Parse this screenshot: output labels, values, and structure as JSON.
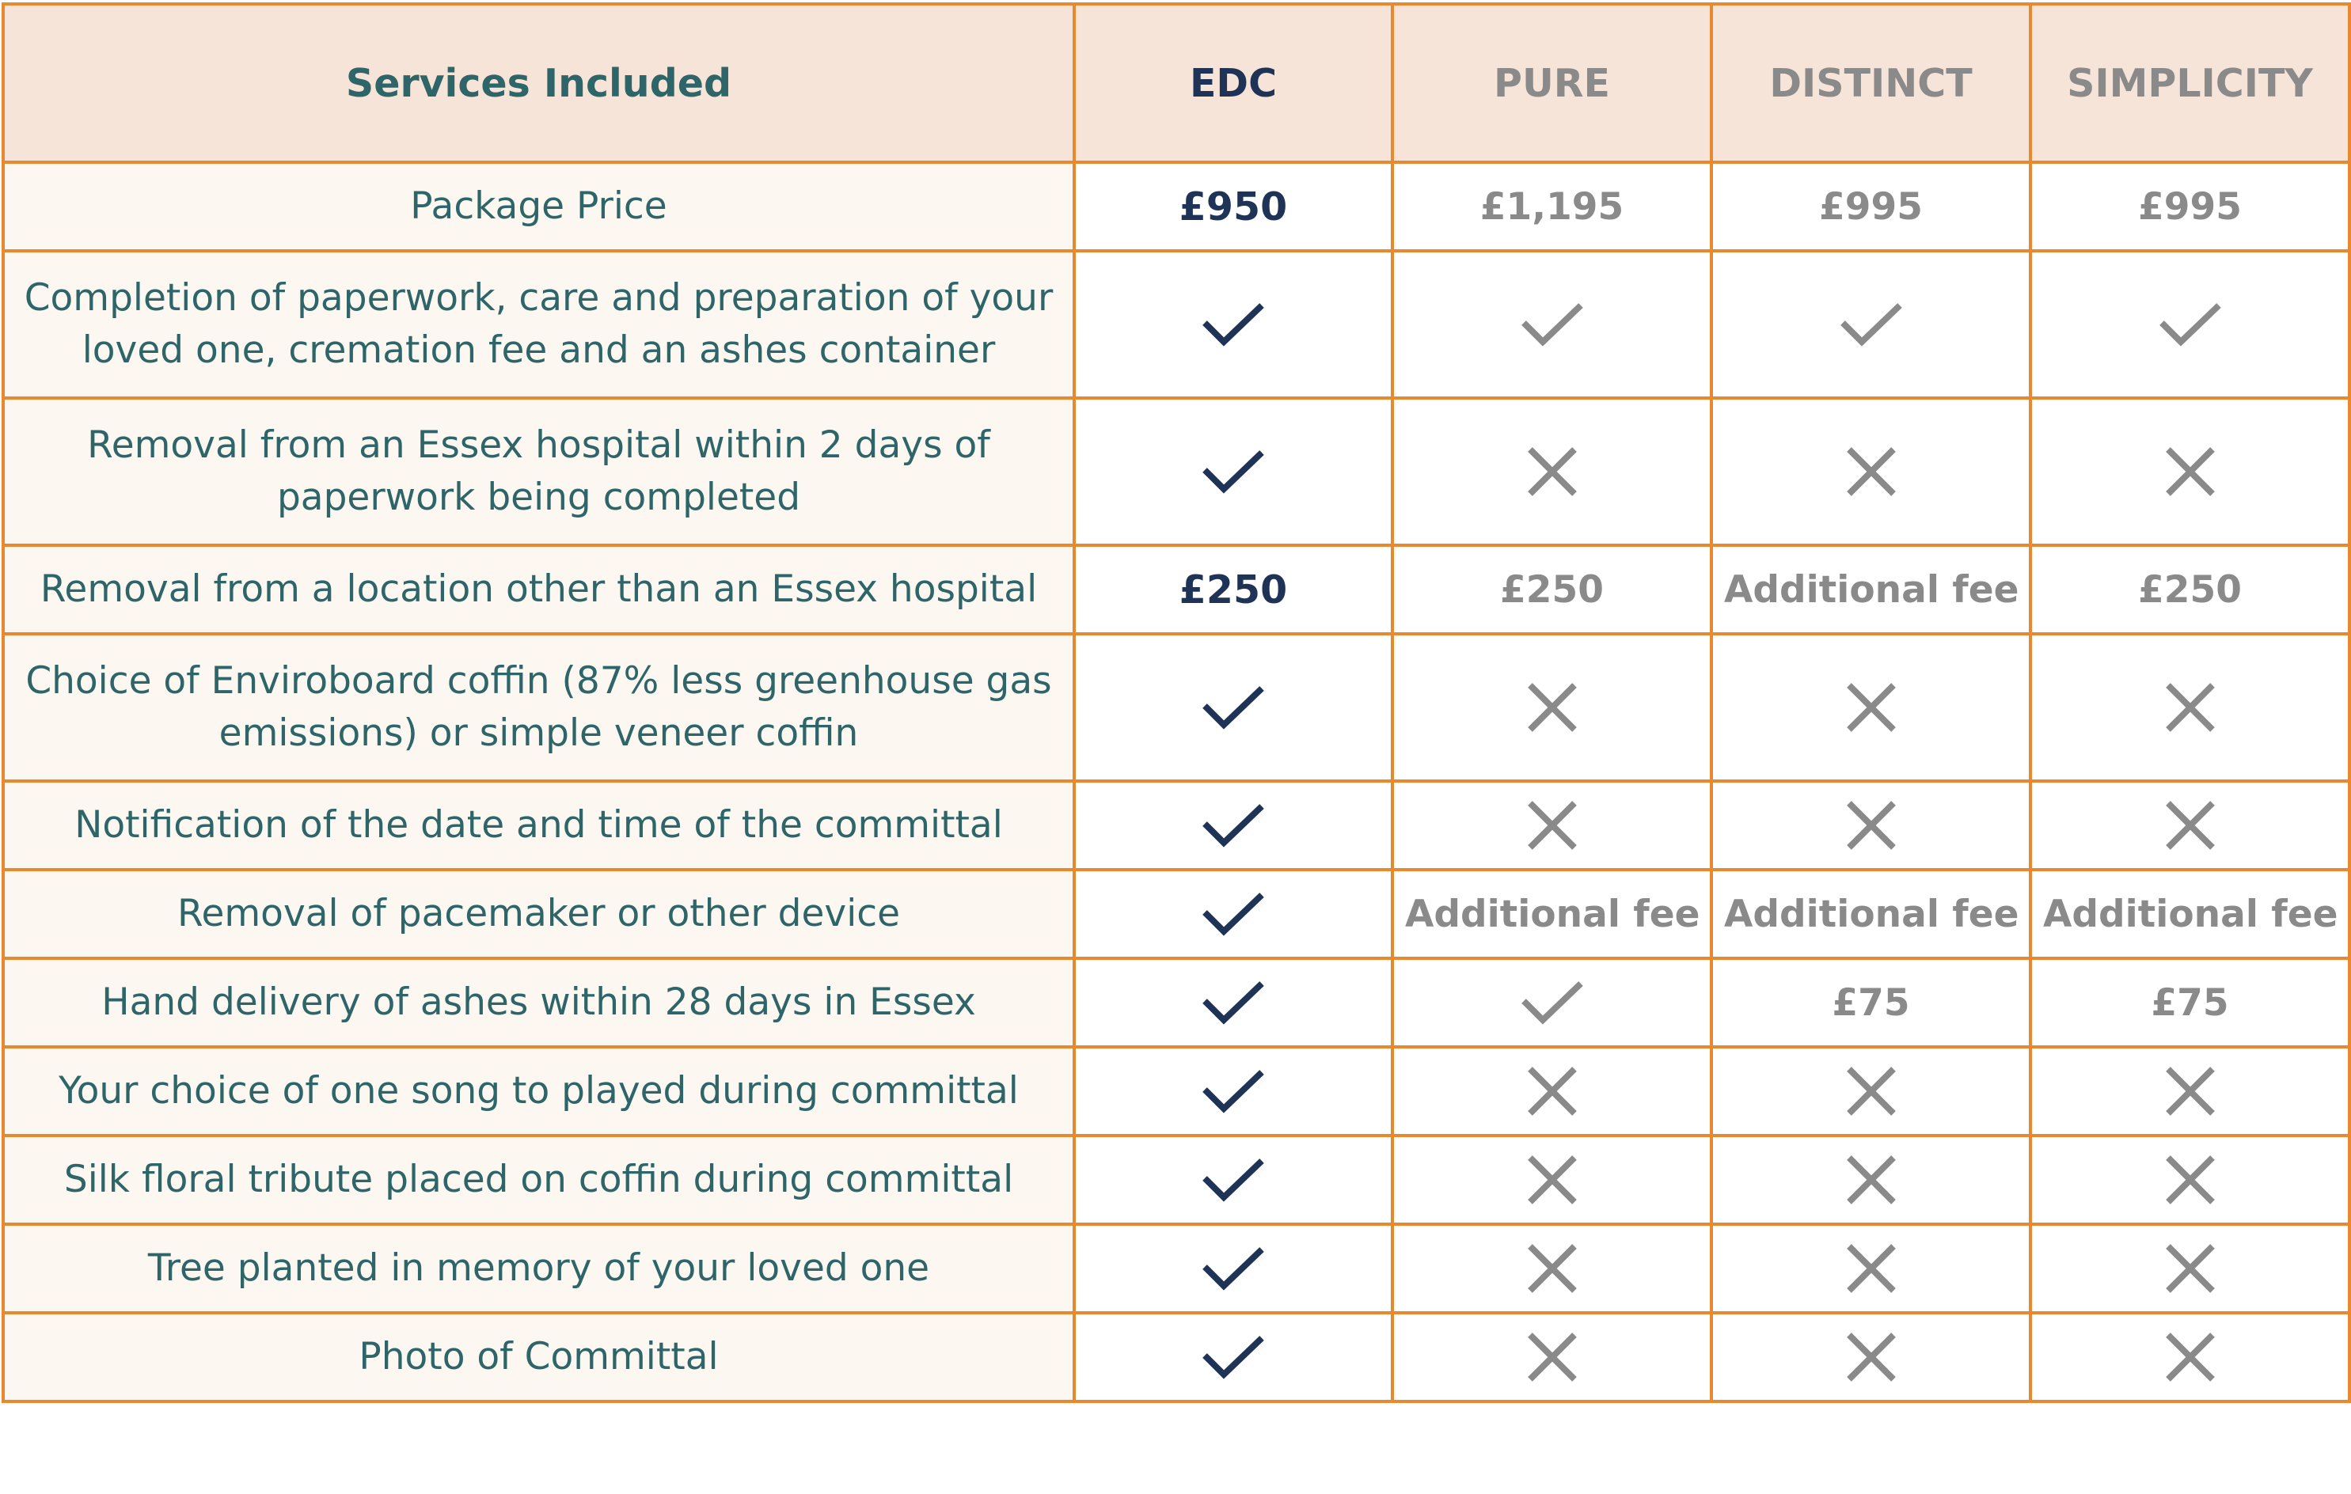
{
  "colors": {
    "border": "#e8892f",
    "header_bg": "#f7e4d8",
    "service_bg": "#fdf7f1",
    "service_text": "#2e6568",
    "edc_mark": "#1f3357",
    "other_mark": "#8a8a8a"
  },
  "header": {
    "services": "Services Included",
    "edc": "EDC",
    "pure": "PURE",
    "distinct": "DISTINCT",
    "simplicity": "SIMPLICITY"
  },
  "rows": [
    {
      "service": "Package Price",
      "size": "short",
      "edc": {
        "kind": "text",
        "text": "£950"
      },
      "pure": {
        "kind": "text",
        "text": "£1,195"
      },
      "distinct": {
        "kind": "text",
        "text": "£995"
      },
      "simplicity": {
        "kind": "text",
        "text": "£995"
      }
    },
    {
      "service": "Completion of paperwork, care and preparation of your loved one, cremation fee and an ashes container",
      "size": "tall",
      "edc": {
        "kind": "check-icon"
      },
      "pure": {
        "kind": "check-icon"
      },
      "distinct": {
        "kind": "check-icon"
      },
      "simplicity": {
        "kind": "check-icon"
      }
    },
    {
      "service": "Removal from an Essex hospital within 2 days of paperwork being completed",
      "size": "tall",
      "edc": {
        "kind": "check-icon"
      },
      "pure": {
        "kind": "cross-icon"
      },
      "distinct": {
        "kind": "cross-icon"
      },
      "simplicity": {
        "kind": "cross-icon"
      }
    },
    {
      "service": "Removal from a location other than an Essex hospital",
      "size": "short",
      "edc": {
        "kind": "text",
        "text": "£250"
      },
      "pure": {
        "kind": "text",
        "text": "£250"
      },
      "distinct": {
        "kind": "text",
        "text": "Additional fee"
      },
      "simplicity": {
        "kind": "text",
        "text": "£250"
      }
    },
    {
      "service": "Choice of Enviroboard coffin (87% less greenhouse gas emissions) or simple veneer coffin",
      "size": "tall",
      "edc": {
        "kind": "check-icon"
      },
      "pure": {
        "kind": "cross-icon"
      },
      "distinct": {
        "kind": "cross-icon"
      },
      "simplicity": {
        "kind": "cross-icon"
      }
    },
    {
      "service": "Notification of the date and time of the committal",
      "size": "short",
      "edc": {
        "kind": "check-icon"
      },
      "pure": {
        "kind": "cross-icon"
      },
      "distinct": {
        "kind": "cross-icon"
      },
      "simplicity": {
        "kind": "cross-icon"
      }
    },
    {
      "service": "Removal of pacemaker or other device",
      "size": "short",
      "edc": {
        "kind": "check-icon"
      },
      "pure": {
        "kind": "text",
        "text": "Additional fee"
      },
      "distinct": {
        "kind": "text",
        "text": "Additional fee"
      },
      "simplicity": {
        "kind": "text",
        "text": "Additional fee"
      }
    },
    {
      "service": "Hand delivery of ashes within 28 days in Essex",
      "size": "short",
      "edc": {
        "kind": "check-icon"
      },
      "pure": {
        "kind": "check-icon"
      },
      "distinct": {
        "kind": "text",
        "text": "£75"
      },
      "simplicity": {
        "kind": "text",
        "text": "£75"
      }
    },
    {
      "service": "Your choice of one song to played during committal",
      "size": "short",
      "edc": {
        "kind": "check-icon"
      },
      "pure": {
        "kind": "cross-icon"
      },
      "distinct": {
        "kind": "cross-icon"
      },
      "simplicity": {
        "kind": "cross-icon"
      }
    },
    {
      "service": "Silk floral tribute placed on coffin during committal",
      "size": "short",
      "edc": {
        "kind": "check-icon"
      },
      "pure": {
        "kind": "cross-icon"
      },
      "distinct": {
        "kind": "cross-icon"
      },
      "simplicity": {
        "kind": "cross-icon"
      }
    },
    {
      "service": "Tree planted in memory of your loved one",
      "size": "short",
      "edc": {
        "kind": "check-icon"
      },
      "pure": {
        "kind": "cross-icon"
      },
      "distinct": {
        "kind": "cross-icon"
      },
      "simplicity": {
        "kind": "cross-icon"
      }
    },
    {
      "service": "Photo of Committal",
      "size": "short",
      "edc": {
        "kind": "check-icon"
      },
      "pure": {
        "kind": "cross-icon"
      },
      "distinct": {
        "kind": "cross-icon"
      },
      "simplicity": {
        "kind": "cross-icon"
      }
    }
  ]
}
